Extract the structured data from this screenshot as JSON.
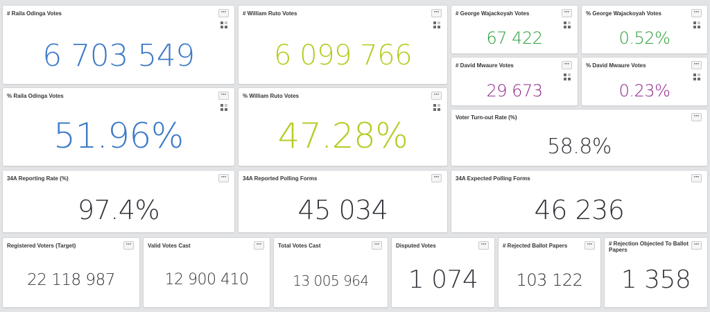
{
  "colors": {
    "raila": "#3c7ac8",
    "ruto": "#b7cb24",
    "george": "#2e9e3a",
    "mwaure": "#8e2a8c",
    "neutral": "#303338"
  },
  "icons": {
    "menu": "more-horizontal-icon",
    "grid": "grid-view-icon"
  },
  "cards": {
    "raila_votes": {
      "title": "# Raila Odinga Votes",
      "value": "6 703 549"
    },
    "ruto_votes": {
      "title": "# William Ruto Votes",
      "value": "6 099 766"
    },
    "george_votes": {
      "title": "# George Wajackoyah Votes",
      "value": "67 422"
    },
    "george_pct": {
      "title": "% George Wajackoyah Votes",
      "value": "0.52%"
    },
    "mwaure_votes": {
      "title": "# David Mwaure Votes",
      "value": "29 673"
    },
    "mwaure_pct": {
      "title": "% David Mwaure Votes",
      "value": "0.23%"
    },
    "raila_pct": {
      "title": "% Raila Odinga Votes",
      "value": "51.96%"
    },
    "ruto_pct": {
      "title": "% William Ruto Votes",
      "value": "47.28%"
    },
    "turnout": {
      "title": "Voter Turn-out Rate (%)",
      "value": "58.8%"
    },
    "reporting_rate": {
      "title": "34A Reporting Rate (%)",
      "value": "97.4%"
    },
    "reported_forms": {
      "title": "34A Reported Polling Forms",
      "value": "45 034"
    },
    "expected_forms": {
      "title": "34A Expected Polling Forms",
      "value": "46 236"
    },
    "registered": {
      "title": "Registered Voters (Target)",
      "value": "22 118 987"
    },
    "valid_cast": {
      "title": "Valid Votes Cast",
      "value": "12 900 410"
    },
    "total_cast": {
      "title": "Total Votes Cast",
      "value": "13 005 964"
    },
    "disputed": {
      "title": "Disputed Votes",
      "value": "1 074"
    },
    "rejected": {
      "title": "# Rejected Ballot Papers",
      "value": "103 122"
    },
    "rejection_objected": {
      "title": "# Rejection Objected To Ballot Papers",
      "value": "1 358"
    }
  }
}
